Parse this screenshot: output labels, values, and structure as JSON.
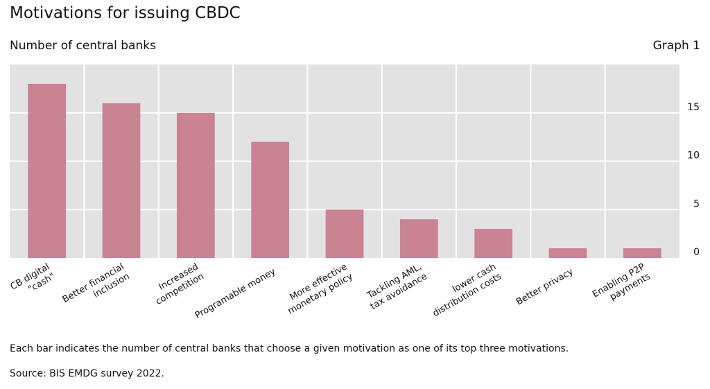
{
  "header": {
    "title": "Motivations for issuing CBDC",
    "subtitle": "Number of central banks",
    "graph_label": "Graph 1"
  },
  "footer": {
    "note": "Each bar indicates the number of central banks that choose a given motivation as one of its top three motivations.",
    "source": "Source: BIS EMDG survey 2022."
  },
  "chart_data": {
    "type": "bar",
    "title": "Motivations for issuing CBDC",
    "ylabel": "Number of central banks",
    "categories": [
      [
        "CB digital",
        "\"cash\""
      ],
      [
        "Better financial",
        "inclusion"
      ],
      [
        "Increased",
        "competition"
      ],
      [
        "Programable money"
      ],
      [
        "More effective",
        "monetary policy"
      ],
      [
        "Tackling AML,",
        "tax avoidance"
      ],
      [
        "lower cash",
        "distribution costs"
      ],
      [
        "Better privacy"
      ],
      [
        "Enabling P2P",
        "payments"
      ]
    ],
    "values": [
      18,
      16,
      15,
      12,
      5,
      4,
      3,
      1,
      1
    ],
    "ylim": [
      0,
      20
    ],
    "yticks": [
      0,
      5,
      10,
      15
    ],
    "y_axis_side": "right",
    "grid": true,
    "bar_color": "#c98393",
    "plot_background": "#e2e2e2",
    "grid_color": "#ffffff"
  }
}
